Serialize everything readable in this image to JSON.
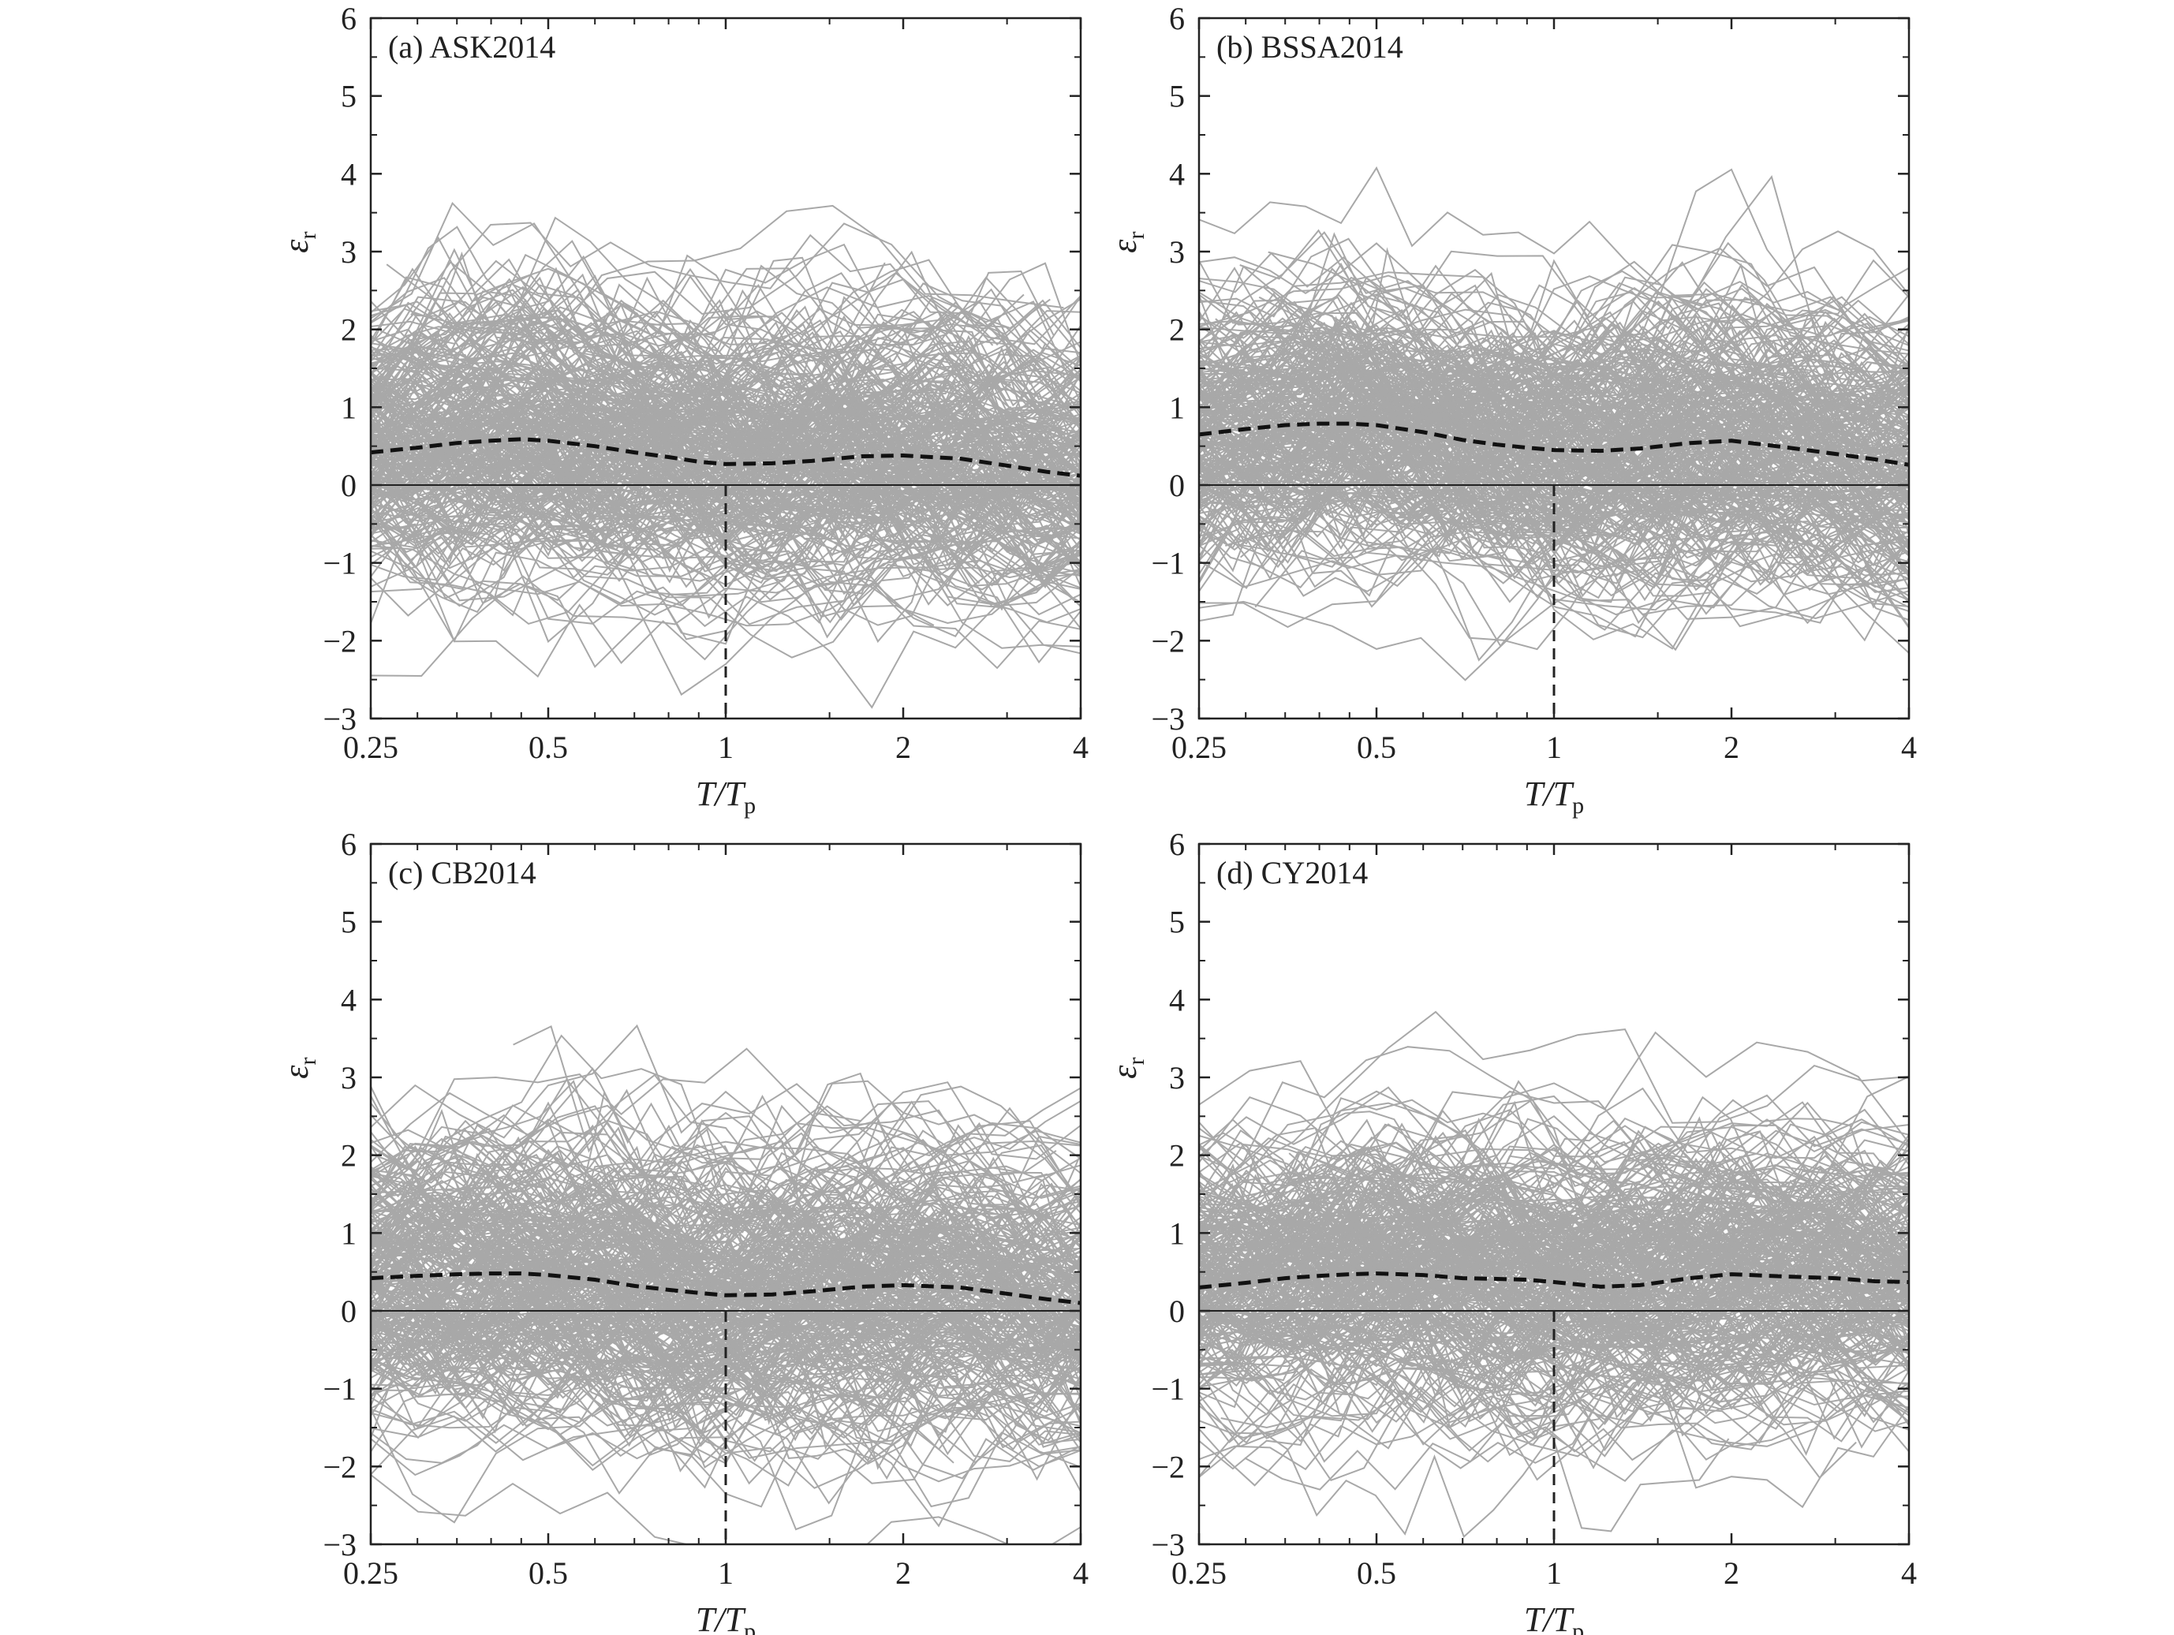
{
  "chart_data": [
    {
      "type": "line",
      "panel_label": "(a) ASK2014",
      "xscale": "log",
      "xlim": [
        0.25,
        4
      ],
      "ylim": [
        -3,
        6
      ],
      "xticks": [
        0.25,
        0.5,
        1,
        2,
        4
      ],
      "yticks": [
        -3,
        -2,
        -1,
        0,
        1,
        2,
        3,
        4,
        5,
        6
      ],
      "xlabel": "T/T_p",
      "ylabel": "ε_r",
      "grid": false,
      "reference_vertical_x": 1,
      "reference_horizontal_y": 0,
      "background_series_color": "#a8a8a8",
      "background_series_count": 300,
      "mean": {
        "x": [
          0.25,
          0.3,
          0.35,
          0.4,
          0.45,
          0.5,
          0.6,
          0.7,
          0.8,
          0.9,
          1.0,
          1.2,
          1.4,
          1.7,
          2.0,
          2.5,
          3.0,
          3.5,
          4.0
        ],
        "y": [
          0.42,
          0.48,
          0.54,
          0.57,
          0.59,
          0.57,
          0.5,
          0.42,
          0.36,
          0.3,
          0.27,
          0.28,
          0.31,
          0.37,
          0.38,
          0.34,
          0.25,
          0.17,
          0.12
        ]
      }
    },
    {
      "type": "line",
      "panel_label": "(b) BSSA2014",
      "xscale": "log",
      "xlim": [
        0.25,
        4
      ],
      "ylim": [
        -3,
        6
      ],
      "xticks": [
        0.25,
        0.5,
        1,
        2,
        4
      ],
      "yticks": [
        -3,
        -2,
        -1,
        0,
        1,
        2,
        3,
        4,
        5,
        6
      ],
      "xlabel": "T/T_p",
      "ylabel": "ε_r",
      "grid": false,
      "reference_vertical_x": 1,
      "reference_horizontal_y": 0,
      "background_series_color": "#a8a8a8",
      "background_series_count": 300,
      "mean": {
        "x": [
          0.25,
          0.3,
          0.35,
          0.4,
          0.45,
          0.5,
          0.6,
          0.7,
          0.8,
          0.9,
          1.0,
          1.2,
          1.4,
          1.7,
          2.0,
          2.5,
          3.0,
          3.5,
          4.0
        ],
        "y": [
          0.65,
          0.72,
          0.77,
          0.79,
          0.79,
          0.77,
          0.68,
          0.58,
          0.52,
          0.48,
          0.45,
          0.44,
          0.47,
          0.54,
          0.57,
          0.48,
          0.4,
          0.33,
          0.26
        ]
      }
    },
    {
      "type": "line",
      "panel_label": "(c) CB2014",
      "xscale": "log",
      "xlim": [
        0.25,
        4
      ],
      "ylim": [
        -3,
        6
      ],
      "xticks": [
        0.25,
        0.5,
        1,
        2,
        4
      ],
      "yticks": [
        -3,
        -2,
        -1,
        0,
        1,
        2,
        3,
        4,
        5,
        6
      ],
      "xlabel": "T/T_p",
      "ylabel": "ε_r",
      "grid": false,
      "reference_vertical_x": 1,
      "reference_horizontal_y": 0,
      "background_series_color": "#a8a8a8",
      "background_series_count": 300,
      "mean": {
        "x": [
          0.25,
          0.3,
          0.35,
          0.4,
          0.45,
          0.5,
          0.6,
          0.7,
          0.8,
          0.9,
          1.0,
          1.2,
          1.4,
          1.7,
          2.0,
          2.5,
          3.0,
          3.5,
          4.0
        ],
        "y": [
          0.42,
          0.45,
          0.47,
          0.48,
          0.48,
          0.46,
          0.4,
          0.32,
          0.27,
          0.23,
          0.2,
          0.21,
          0.25,
          0.31,
          0.33,
          0.3,
          0.22,
          0.15,
          0.1
        ]
      }
    },
    {
      "type": "line",
      "panel_label": "(d) CY2014",
      "xscale": "log",
      "xlim": [
        0.25,
        4
      ],
      "ylim": [
        -3,
        6
      ],
      "xticks": [
        0.25,
        0.5,
        1,
        2,
        4
      ],
      "yticks": [
        -3,
        -2,
        -1,
        0,
        1,
        2,
        3,
        4,
        5,
        6
      ],
      "xlabel": "T/T_p",
      "ylabel": "ε_r",
      "grid": false,
      "reference_vertical_x": 1,
      "reference_horizontal_y": 0,
      "background_series_color": "#a8a8a8",
      "background_series_count": 300,
      "mean": {
        "x": [
          0.25,
          0.3,
          0.35,
          0.4,
          0.45,
          0.5,
          0.6,
          0.7,
          0.8,
          0.9,
          1.0,
          1.2,
          1.4,
          1.7,
          2.0,
          2.5,
          3.0,
          3.5,
          4.0
        ],
        "y": [
          0.3,
          0.36,
          0.42,
          0.45,
          0.47,
          0.48,
          0.46,
          0.42,
          0.41,
          0.4,
          0.37,
          0.31,
          0.33,
          0.42,
          0.47,
          0.44,
          0.42,
          0.38,
          0.37
        ]
      }
    }
  ]
}
